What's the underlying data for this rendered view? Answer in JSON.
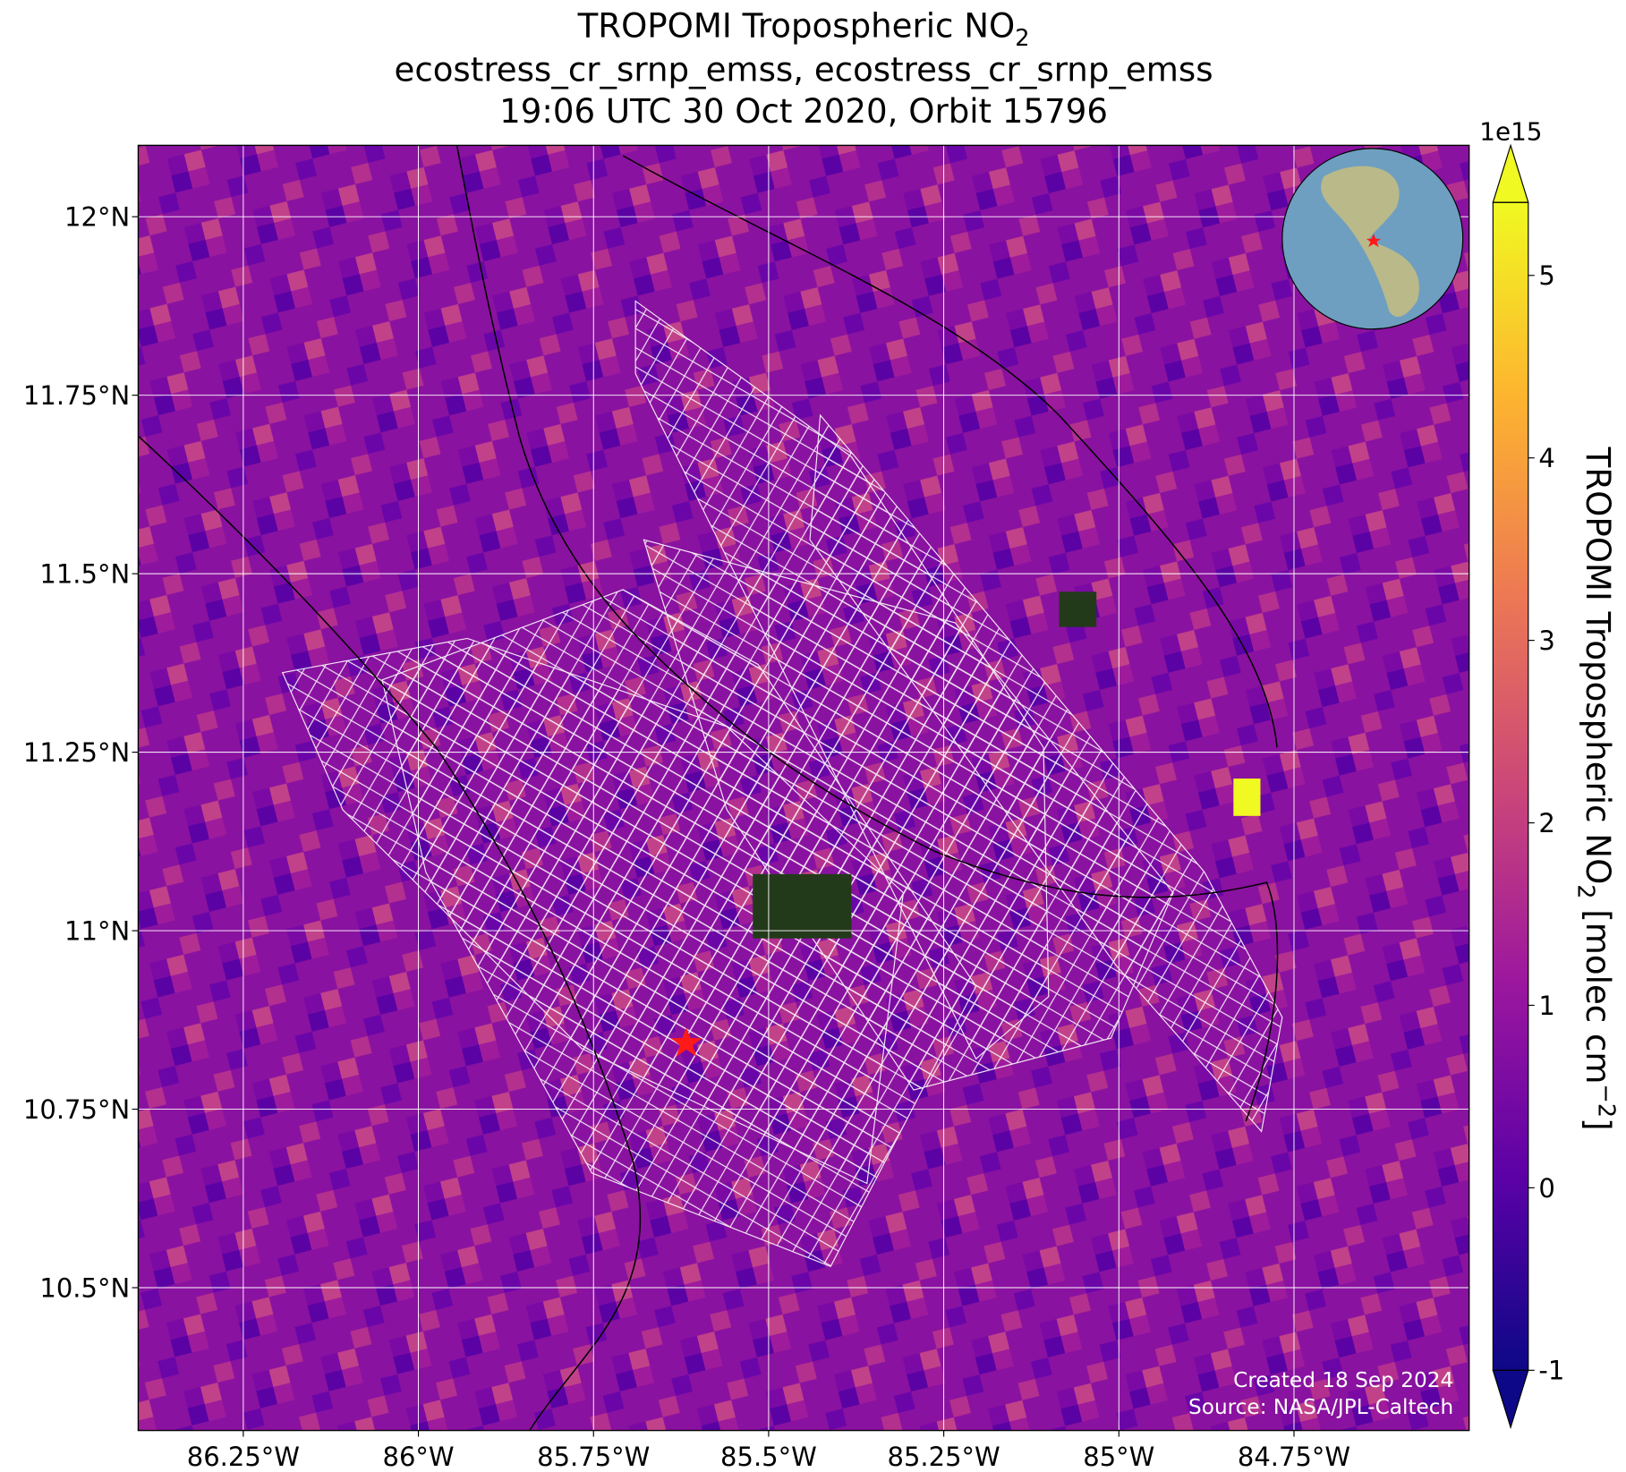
{
  "chart_data": {
    "type": "map",
    "title_main": "TROPOMI Tropospheric NO",
    "title_sub": "2",
    "subtitle": "ecostress_cr_srnp_emss, ecostress_cr_srnp_emss",
    "subtitle2": "19:06 UTC 30 Oct 2020, Orbit 15796",
    "xlim": [
      -86.4,
      -84.5
    ],
    "ylim": [
      10.3,
      12.1
    ],
    "xticks": [
      {
        "value": -86.25,
        "label": "86.25°W"
      },
      {
        "value": -86,
        "label": "86°W"
      },
      {
        "value": -85.75,
        "label": "85.75°W"
      },
      {
        "value": -85.5,
        "label": "85.5°W"
      },
      {
        "value": -85.25,
        "label": "85.25°W"
      },
      {
        "value": -85,
        "label": "85°W"
      },
      {
        "value": -84.75,
        "label": "84.75°W"
      }
    ],
    "yticks": [
      {
        "value": 12,
        "label": "12°N"
      },
      {
        "value": 11.75,
        "label": "11.75°N"
      },
      {
        "value": 11.5,
        "label": "11.5°N"
      },
      {
        "value": 11.25,
        "label": "11.25°N"
      },
      {
        "value": 11,
        "label": "11°N"
      },
      {
        "value": 10.75,
        "label": "10.75°N"
      },
      {
        "value": 10.5,
        "label": "10.5°N"
      }
    ],
    "grid": true,
    "colorbar": {
      "clim": [
        -1,
        5.4
      ],
      "ticks": [
        -1,
        0,
        1,
        2,
        3,
        4,
        5
      ],
      "exponent": "1e15",
      "label_main": "TROPOMI Tropospheric NO",
      "label_sub": "2",
      "label_units": " [molec cm",
      "label_sup": "−2",
      "label_end": "]",
      "colors": [
        "#0d0887",
        "#5c01a6",
        "#9c179e",
        "#cc4778",
        "#ed7953",
        "#fdb42f",
        "#f0f921"
      ]
    },
    "credit_created": "Created 18 Sep 2024",
    "credit_source": "Source: NASA/JPL-Caltech"
  }
}
